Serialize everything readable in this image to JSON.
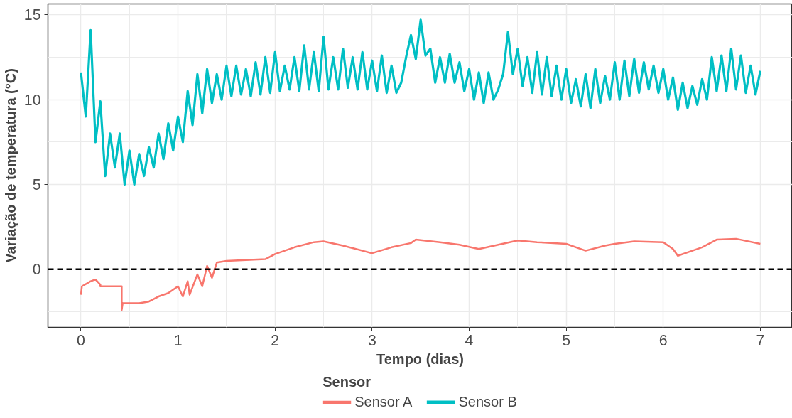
{
  "chart_data": {
    "type": "line",
    "xlabel": "Tempo (dias)",
    "ylabel": "Variação de temperatura (°C)",
    "legend_title": "Sensor",
    "legend": "bottom",
    "grid": true,
    "line_style": "solid",
    "marker": "none",
    "xlim": [
      -0.34,
      7.33
    ],
    "ylim": [
      -3.42,
      15.64
    ],
    "xticks": [
      0,
      1,
      2,
      3,
      4,
      5,
      6,
      7
    ],
    "yticks": [
      0,
      5,
      10,
      15
    ],
    "ref_lines": [
      {
        "axis": "y",
        "value": 0,
        "color": "#000000",
        "line_style": "dashed"
      }
    ],
    "series": [
      {
        "name": "Sensor A",
        "color": "#f8766d",
        "x": [
          0,
          0.01,
          0.1,
          0.15,
          0.2,
          0.2,
          0.42,
          0.42,
          0.43,
          0.6,
          0.7,
          0.8,
          0.9,
          1.0,
          1.05,
          1.1,
          1.12,
          1.2,
          1.25,
          1.3,
          1.35,
          1.4,
          1.5,
          1.7,
          1.9,
          2.0,
          2.2,
          2.4,
          2.5,
          2.7,
          2.9,
          3.0,
          3.2,
          3.4,
          3.45,
          3.7,
          3.9,
          4.1,
          4.3,
          4.5,
          4.7,
          5.0,
          5.2,
          5.4,
          5.5,
          5.7,
          6.0,
          6.1,
          6.15,
          6.3,
          6.4,
          6.55,
          6.75,
          7.0
        ],
        "values": [
          -1.5,
          -1.0,
          -0.7,
          -0.6,
          -0.9,
          -1.0,
          -1.0,
          -2.4,
          -2.0,
          -2.0,
          -1.9,
          -1.6,
          -1.4,
          -1.0,
          -1.6,
          -0.7,
          -1.5,
          -0.3,
          -1.0,
          0.2,
          -0.5,
          0.4,
          0.5,
          0.55,
          0.6,
          0.9,
          1.3,
          1.6,
          1.65,
          1.4,
          1.1,
          0.95,
          1.3,
          1.55,
          1.75,
          1.6,
          1.45,
          1.2,
          1.45,
          1.7,
          1.6,
          1.5,
          1.1,
          1.4,
          1.5,
          1.65,
          1.6,
          1.2,
          0.8,
          1.1,
          1.3,
          1.75,
          1.8,
          1.5
        ]
      },
      {
        "name": "Sensor B",
        "color": "#00bfc4",
        "x": [
          0,
          0.05,
          0.1,
          0.15,
          0.2,
          0.25,
          0.3,
          0.35,
          0.4,
          0.45,
          0.5,
          0.55,
          0.6,
          0.65,
          0.7,
          0.75,
          0.8,
          0.85,
          0.9,
          0.95,
          1.0,
          1.05,
          1.1,
          1.15,
          1.2,
          1.25,
          1.3,
          1.35,
          1.4,
          1.45,
          1.5,
          1.55,
          1.6,
          1.65,
          1.7,
          1.75,
          1.8,
          1.85,
          1.9,
          1.95,
          2.0,
          2.05,
          2.1,
          2.15,
          2.2,
          2.25,
          2.3,
          2.35,
          2.4,
          2.45,
          2.5,
          2.55,
          2.6,
          2.65,
          2.7,
          2.75,
          2.8,
          2.85,
          2.9,
          2.95,
          3.0,
          3.05,
          3.1,
          3.15,
          3.2,
          3.25,
          3.3,
          3.35,
          3.4,
          3.45,
          3.5,
          3.55,
          3.6,
          3.65,
          3.7,
          3.75,
          3.8,
          3.85,
          3.9,
          3.95,
          4.0,
          4.05,
          4.1,
          4.15,
          4.2,
          4.25,
          4.3,
          4.35,
          4.4,
          4.45,
          4.5,
          4.55,
          4.6,
          4.65,
          4.7,
          4.75,
          4.8,
          4.85,
          4.9,
          4.95,
          5.0,
          5.05,
          5.1,
          5.15,
          5.2,
          5.25,
          5.3,
          5.35,
          5.4,
          5.45,
          5.5,
          5.55,
          5.6,
          5.65,
          5.7,
          5.75,
          5.8,
          5.85,
          5.9,
          5.95,
          6.0,
          6.05,
          6.1,
          6.15,
          6.2,
          6.25,
          6.3,
          6.35,
          6.4,
          6.45,
          6.5,
          6.55,
          6.6,
          6.65,
          6.7,
          6.75,
          6.8,
          6.85,
          6.9,
          6.95,
          7.0
        ],
        "values": [
          11.6,
          9.0,
          14.1,
          7.5,
          9.9,
          5.5,
          8.0,
          6.0,
          8.0,
          5.0,
          7.0,
          5.0,
          6.8,
          5.5,
          7.2,
          6.0,
          8.0,
          6.5,
          8.6,
          7.0,
          9.0,
          7.5,
          10.5,
          8.5,
          11.5,
          9.2,
          11.8,
          9.8,
          11.5,
          10.0,
          12.0,
          10.2,
          12.0,
          10.3,
          11.8,
          10.2,
          12.2,
          10.3,
          12.5,
          10.4,
          12.8,
          10.5,
          12.0,
          10.6,
          12.5,
          10.5,
          13.2,
          10.6,
          12.8,
          10.5,
          13.7,
          10.6,
          12.5,
          10.6,
          13.0,
          10.7,
          12.5,
          10.6,
          12.8,
          10.6,
          12.3,
          10.5,
          12.6,
          10.4,
          12.0,
          10.4,
          11.0,
          12.5,
          13.8,
          12.4,
          14.7,
          12.6,
          13.0,
          11.0,
          12.5,
          11.0,
          12.7,
          11.0,
          12.2,
          10.5,
          11.8,
          10.0,
          11.6,
          9.8,
          11.6,
          10.0,
          10.6,
          11.5,
          14.0,
          11.5,
          13.0,
          10.8,
          12.5,
          10.4,
          12.8,
          10.3,
          12.5,
          10.2,
          12.0,
          10.0,
          11.8,
          9.8,
          11.2,
          9.6,
          11.5,
          9.5,
          11.8,
          9.8,
          11.4,
          10.0,
          12.2,
          10.0,
          12.3,
          10.2,
          12.4,
          10.4,
          12.2,
          10.6,
          12.0,
          10.4,
          11.8,
          10.0,
          11.3,
          9.4,
          11.0,
          9.5,
          10.8,
          9.7,
          11.2,
          10.0,
          12.5,
          10.5,
          12.6,
          10.5,
          13.0,
          10.6,
          12.6,
          10.4,
          12.0,
          10.3,
          11.7
        ]
      }
    ]
  }
}
